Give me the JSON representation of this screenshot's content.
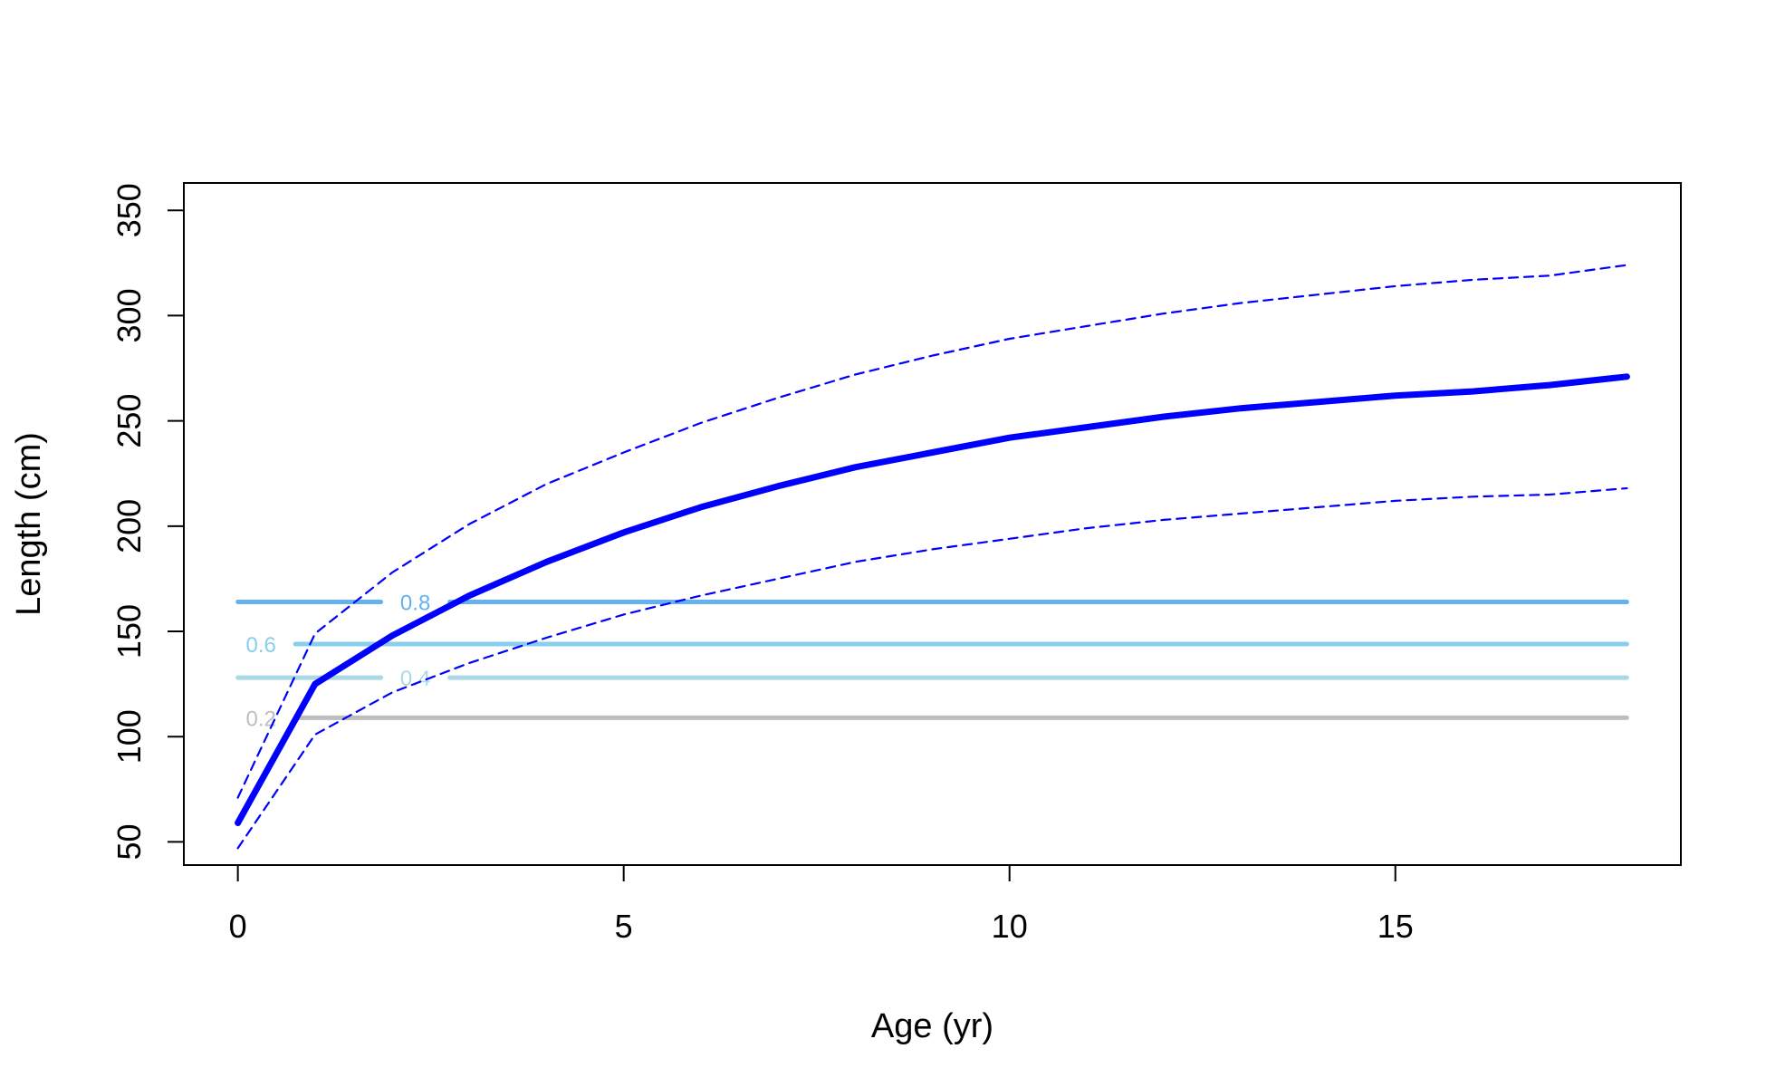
{
  "chart_data": {
    "type": "line",
    "xlabel": "Age (yr)",
    "ylabel": "Length (cm)",
    "xlim": [
      -0.7,
      18.7
    ],
    "ylim": [
      39,
      363
    ],
    "xticks": [
      0,
      5,
      10,
      15
    ],
    "yticks": [
      50,
      100,
      150,
      200,
      250,
      300,
      350
    ],
    "grid": false,
    "series": [
      {
        "style": "solid-thick",
        "color": "#0000ff",
        "x": [
          0,
          1,
          2,
          3,
          4,
          5,
          6,
          7,
          8,
          9,
          10,
          11,
          12,
          13,
          14,
          15,
          16,
          17,
          18
        ],
        "y": [
          59,
          125,
          148,
          167,
          183,
          197,
          209,
          219,
          228,
          235,
          242,
          247,
          252,
          256,
          259,
          262,
          264,
          267,
          271
        ]
      },
      {
        "style": "dashed",
        "color": "#0000ff",
        "x": [
          0,
          1,
          2,
          3,
          4,
          5,
          6,
          7,
          8,
          9,
          10,
          11,
          12,
          13,
          14,
          15,
          16,
          17,
          18
        ],
        "y": [
          71,
          149,
          178,
          201,
          220,
          235,
          249,
          261,
          272,
          281,
          289,
          295,
          301,
          306,
          310,
          314,
          317,
          319,
          324
        ]
      },
      {
        "style": "dashed",
        "color": "#0000ff",
        "x": [
          0,
          1,
          2,
          3,
          4,
          5,
          6,
          7,
          8,
          9,
          10,
          11,
          12,
          13,
          14,
          15,
          16,
          17,
          18
        ],
        "y": [
          47,
          101,
          121,
          135,
          147,
          158,
          167,
          175,
          183,
          189,
          194,
          199,
          203,
          206,
          209,
          212,
          214,
          215,
          218
        ]
      }
    ],
    "reference_lines": [
      {
        "label": "0.8",
        "y": 164,
        "color": "#63b1ef",
        "x_start": 0,
        "x_end": 18,
        "label_x": 2.3
      },
      {
        "label": "0.6",
        "y": 144,
        "color": "#87cfec",
        "x_start": 0,
        "x_end": 18,
        "label_x": 0.3
      },
      {
        "label": "0.4",
        "y": 128,
        "color": "#aad8e6",
        "x_start": 0,
        "x_end": 18,
        "label_x": 2.3
      },
      {
        "label": "0.2",
        "y": 109,
        "color": "#bebebe",
        "x_start": 0,
        "x_end": 18,
        "label_x": 0.3
      }
    ]
  }
}
